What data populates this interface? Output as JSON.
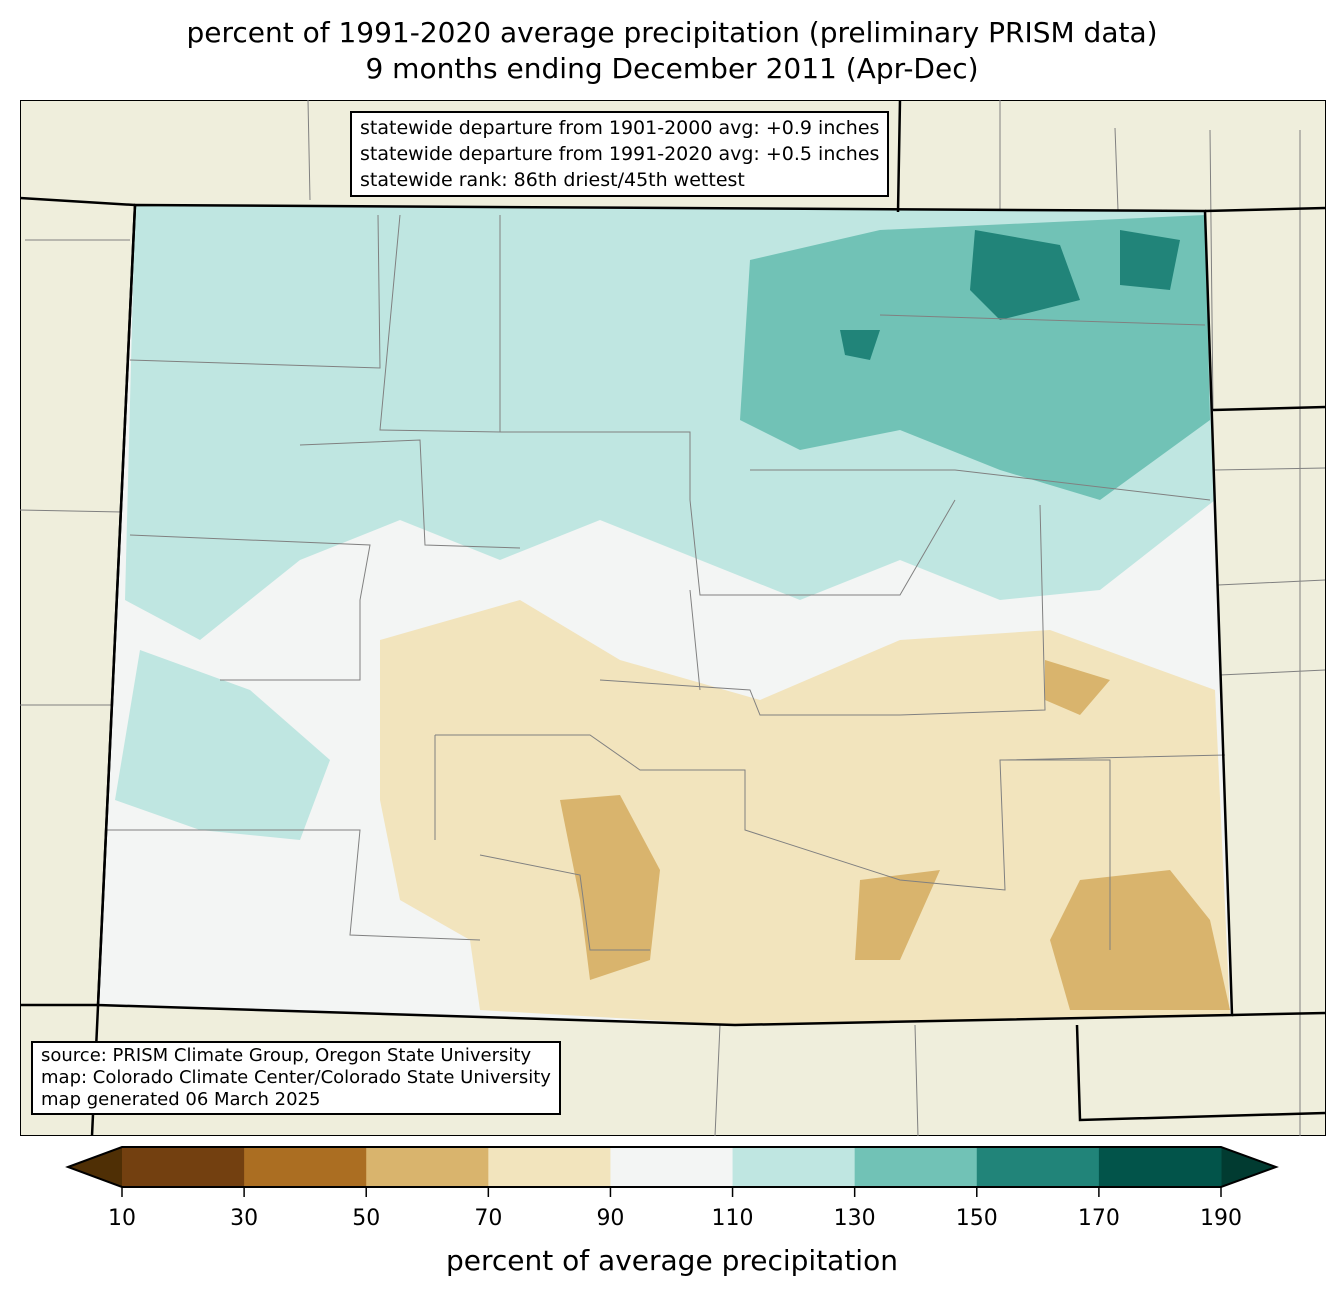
{
  "title": {
    "line1": "percent of 1991-2020 average precipitation (preliminary PRISM data)",
    "line2": "9 months ending December 2011 (Apr-Dec)"
  },
  "stats": {
    "line1": "statewide departure from 1901-2000 avg: +0.9 inches",
    "line2": "statewide departure from 1991-2020 avg: +0.5 inches",
    "line3": "statewide rank: 86th driest/45th wettest"
  },
  "source": {
    "line1": "source: PRISM Climate Group, Oregon State University",
    "line2": "map: Colorado Climate Center/Colorado State University",
    "line3": "map generated 06 March 2025"
  },
  "colorbar": {
    "label": "percent of average precipitation",
    "ticks": [
      "10",
      "30",
      "50",
      "70",
      "90",
      "110",
      "130",
      "150",
      "170",
      "190"
    ],
    "colors": [
      "#4f2f05",
      "#734010",
      "#ab6e22",
      "#d9b46d",
      "#f2e4bd",
      "#f3f5f4",
      "#bfe6e1",
      "#71c2b6",
      "#218479",
      "#02544a",
      "#013b31"
    ]
  },
  "map_colors": {
    "land": "#efeedc",
    "state_border": "#000000",
    "county_border": "#808080"
  }
}
